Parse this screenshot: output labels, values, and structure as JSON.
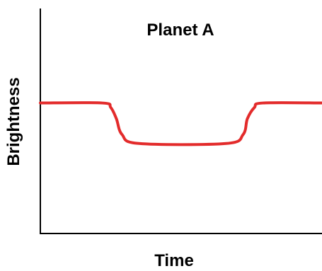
{
  "chart_data": {
    "type": "line",
    "title": "Planet A",
    "xlabel": "Time",
    "ylabel": "Brightness",
    "xlim": [
      0,
      100
    ],
    "ylim": [
      0,
      100
    ],
    "grid": false,
    "series": [
      {
        "color": "#e32b2b",
        "points": [
          {
            "x": 0,
            "y": 58
          },
          {
            "x": 22,
            "y": 58
          },
          {
            "x": 25,
            "y": 56
          },
          {
            "x": 27,
            "y": 51
          },
          {
            "x": 29,
            "y": 44
          },
          {
            "x": 35,
            "y": 40
          },
          {
            "x": 66,
            "y": 40
          },
          {
            "x": 72,
            "y": 44
          },
          {
            "x": 73.5,
            "y": 51
          },
          {
            "x": 76,
            "y": 56
          },
          {
            "x": 79,
            "y": 58
          },
          {
            "x": 100,
            "y": 58
          }
        ]
      }
    ]
  }
}
